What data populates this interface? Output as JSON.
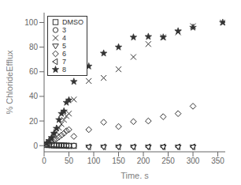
{
  "chart_data": {
    "type": "scatter",
    "xlabel": "Time, s",
    "ylabel": "% ChlorideEfflux",
    "xlim": [
      0,
      365
    ],
    "ylim": [
      -5,
      108
    ],
    "xticks": [
      0,
      50,
      100,
      150,
      200,
      250,
      300,
      350
    ],
    "yticks": [
      0,
      20,
      40,
      60,
      80,
      100
    ],
    "grid": false,
    "legend": "upper left",
    "series": [
      {
        "name": "DMSO",
        "color": "#333333",
        "marker": "square-open",
        "x": [
          5,
          10,
          15,
          20,
          25,
          30,
          35,
          40,
          45,
          50,
          60
        ],
        "values": [
          0.5,
          0.5,
          0.3,
          0.2,
          0.2,
          0.1,
          0.1,
          0.0,
          -0.1,
          -0.2,
          -0.2
        ]
      },
      {
        "name": "3",
        "color": "#333333",
        "marker": "circle-open",
        "x": [
          5,
          10,
          15,
          20,
          25,
          30,
          35,
          40,
          45,
          50,
          60
        ],
        "values": [
          1.0,
          1.0,
          0.8,
          0.6,
          0.5,
          0.4,
          0.3,
          0.2,
          0.1,
          0.0,
          0.0
        ]
      },
      {
        "name": "4",
        "color": "#333333",
        "marker": "x",
        "x": [
          5,
          10,
          15,
          20,
          25,
          30,
          35,
          40,
          45,
          50,
          60,
          90,
          120,
          150,
          180,
          210,
          240,
          270,
          300,
          360
        ],
        "values": [
          1.5,
          3.0,
          5.0,
          8.0,
          11.0,
          14.5,
          17.5,
          21.0,
          24.0,
          26.0,
          37.5,
          52.5,
          55.0,
          62.0,
          72.0,
          82.5,
          88.0,
          92.0,
          97.0,
          100.0
        ]
      },
      {
        "name": "5",
        "color": "#333333",
        "marker": "triangle-down-open",
        "x": [
          90,
          120,
          150,
          180,
          210,
          240,
          270,
          300
        ],
        "values": [
          -1.0,
          -1.0,
          -1.0,
          -1.0,
          -1.0,
          -1.0,
          -1.0,
          -1.0
        ]
      },
      {
        "name": "6",
        "color": "#333333",
        "marker": "diamond-open",
        "x": [
          5,
          10,
          15,
          20,
          25,
          30,
          35,
          40,
          45,
          50,
          60,
          90,
          120,
          150,
          180,
          210,
          240,
          270,
          300
        ],
        "values": [
          1.0,
          2.0,
          3.0,
          4.5,
          5.5,
          7.0,
          8.5,
          10.0,
          12.0,
          13.0,
          7.5,
          13.0,
          19.0,
          15.5,
          19.5,
          20.0,
          23.5,
          26.0,
          32.0
        ]
      },
      {
        "name": "7",
        "color": "#333333",
        "marker": "triangle-left-open",
        "x": [
          90,
          120,
          150,
          180,
          210,
          240,
          270,
          300
        ],
        "values": [
          -1.0,
          -1.0,
          -1.0,
          -1.0,
          -1.0,
          -1.0,
          -1.0,
          -1.0
        ]
      },
      {
        "name": "8",
        "color": "#333333",
        "marker": "star",
        "x": [
          5,
          10,
          15,
          20,
          25,
          30,
          35,
          40,
          45,
          50,
          60,
          90,
          120,
          150,
          180,
          210,
          240,
          270,
          300,
          360
        ],
        "values": [
          2.0,
          4.0,
          6.5,
          10.0,
          14.0,
          21.0,
          26.0,
          28.0,
          35.0,
          37.0,
          52.0,
          64.5,
          75.0,
          80.0,
          88.0,
          88.5,
          88.0,
          93.0,
          96.0,
          100.0
        ]
      }
    ]
  }
}
